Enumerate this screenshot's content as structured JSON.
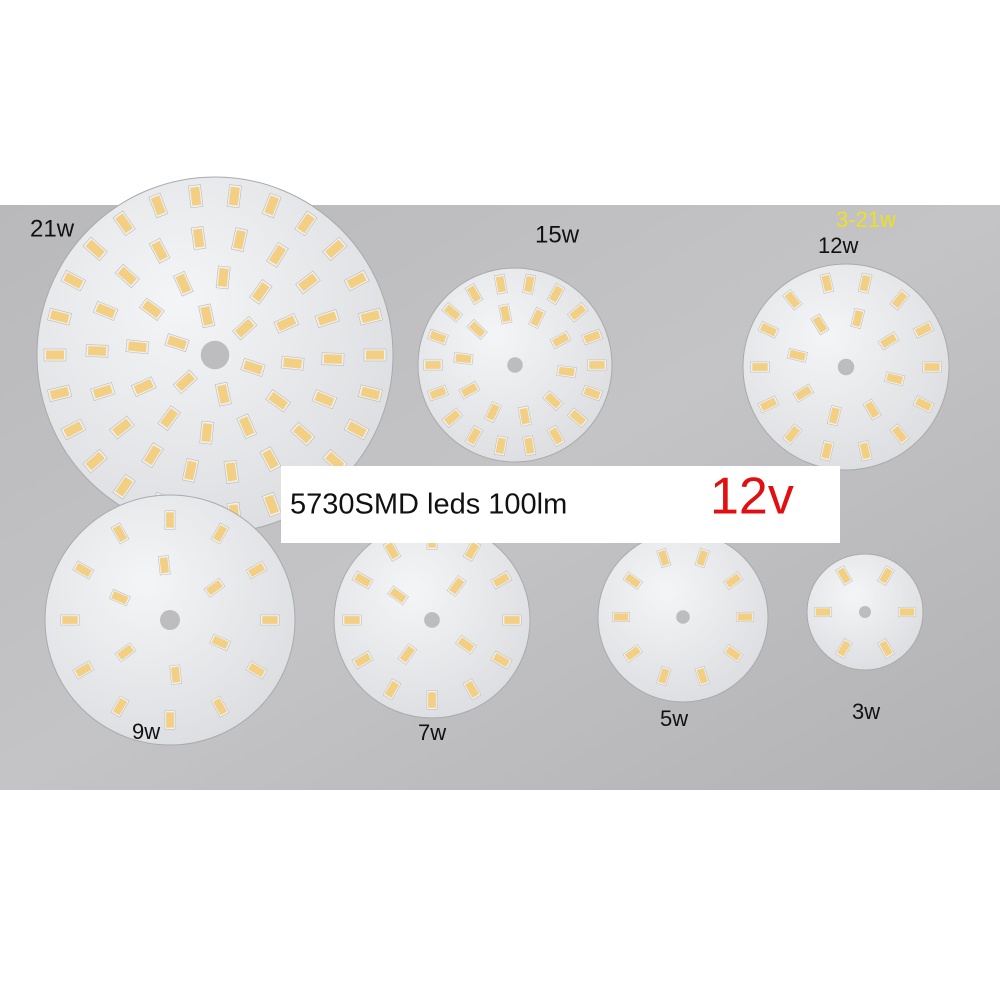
{
  "labels": {
    "w21": "21w",
    "w15": "15w",
    "range": "3-21w",
    "w12": "12w",
    "w9": "9w",
    "w7": "7w",
    "w5": "5w",
    "w3": "3w"
  },
  "banner": {
    "text": "5730SMD leds 100lm",
    "voltage": "12v"
  }
}
